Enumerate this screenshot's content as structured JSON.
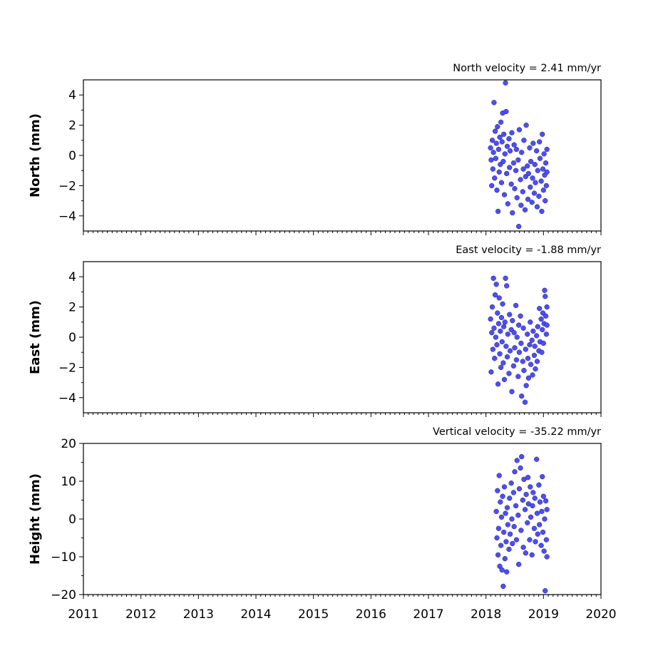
{
  "chart_data": [
    {
      "type": "scatter",
      "title": "North velocity = 2.41 mm/yr",
      "ylabel": "North (mm)",
      "xlim": [
        2011,
        2020
      ],
      "ylim": [
        -5,
        5
      ],
      "xticks": [
        2011,
        2012,
        2013,
        2014,
        2015,
        2016,
        2017,
        2018,
        2019,
        2020
      ],
      "yticks": [
        -4,
        -2,
        0,
        2,
        4
      ],
      "show_xtick_labels": false,
      "series": [
        {
          "marker_color": "#4d4dff",
          "points": [
            [
              2018.08,
              0.5
            ],
            [
              2018.09,
              -0.3
            ],
            [
              2018.1,
              -2.0
            ],
            [
              2018.11,
              1.0
            ],
            [
              2018.12,
              -0.9
            ],
            [
              2018.13,
              0.2
            ],
            [
              2018.14,
              3.5
            ],
            [
              2018.15,
              -1.5
            ],
            [
              2018.16,
              1.6
            ],
            [
              2018.17,
              -0.2
            ],
            [
              2018.18,
              0.8
            ],
            [
              2018.19,
              -2.3
            ],
            [
              2018.2,
              1.9
            ],
            [
              2018.21,
              -3.7
            ],
            [
              2018.22,
              0.4
            ],
            [
              2018.23,
              -1.1
            ],
            [
              2018.24,
              1.2
            ],
            [
              2018.25,
              -0.6
            ],
            [
              2018.26,
              2.2
            ],
            [
              2018.27,
              -1.8
            ],
            [
              2018.28,
              0.9
            ],
            [
              2018.29,
              2.8
            ],
            [
              2018.3,
              -0.4
            ],
            [
              2018.31,
              1.4
            ],
            [
              2018.32,
              -2.6
            ],
            [
              2018.33,
              0.1
            ],
            [
              2018.34,
              4.8
            ],
            [
              2018.35,
              2.9
            ],
            [
              2018.36,
              -1.2
            ],
            [
              2018.37,
              0.6
            ],
            [
              2018.38,
              -3.2
            ],
            [
              2018.4,
              1.1
            ],
            [
              2018.41,
              -0.8
            ],
            [
              2018.42,
              0.3
            ],
            [
              2018.44,
              -1.9
            ],
            [
              2018.45,
              1.5
            ],
            [
              2018.46,
              -3.8
            ],
            [
              2018.48,
              -0.5
            ],
            [
              2018.49,
              0.7
            ],
            [
              2018.5,
              -2.2
            ],
            [
              2018.52,
              -1.0
            ],
            [
              2018.53,
              0.4
            ],
            [
              2018.54,
              -2.8
            ],
            [
              2018.56,
              -0.3
            ],
            [
              2018.57,
              -4.7
            ],
            [
              2018.58,
              1.7
            ],
            [
              2018.6,
              -1.6
            ],
            [
              2018.61,
              -3.3
            ],
            [
              2018.62,
              0.2
            ],
            [
              2018.64,
              -2.4
            ],
            [
              2018.65,
              -0.9
            ],
            [
              2018.66,
              1.0
            ],
            [
              2018.68,
              -3.6
            ],
            [
              2018.69,
              -1.4
            ],
            [
              2018.7,
              2.0
            ],
            [
              2018.72,
              -0.7
            ],
            [
              2018.73,
              -2.9
            ],
            [
              2018.74,
              -1.2
            ],
            [
              2018.76,
              0.5
            ],
            [
              2018.77,
              -2.1
            ],
            [
              2018.78,
              -0.4
            ],
            [
              2018.8,
              -3.1
            ],
            [
              2018.81,
              -1.5
            ],
            [
              2018.82,
              0.8
            ],
            [
              2018.84,
              -2.5
            ],
            [
              2018.85,
              -0.6
            ],
            [
              2018.86,
              -1.8
            ],
            [
              2018.88,
              0.3
            ],
            [
              2018.89,
              -3.4
            ],
            [
              2018.9,
              -1.0
            ],
            [
              2018.92,
              -2.7
            ],
            [
              2018.93,
              0.9
            ],
            [
              2018.94,
              -0.2
            ],
            [
              2018.96,
              -1.7
            ],
            [
              2018.97,
              -3.7
            ],
            [
              2018.98,
              1.4
            ],
            [
              2018.99,
              -0.9
            ],
            [
              2019.0,
              -2.3
            ],
            [
              2019.01,
              0.1
            ],
            [
              2019.02,
              -1.3
            ],
            [
              2019.03,
              -3.0
            ],
            [
              2019.04,
              -0.5
            ],
            [
              2019.05,
              -2.0
            ],
            [
              2019.06,
              0.4
            ],
            [
              2019.06,
              -1.1
            ]
          ]
        }
      ]
    },
    {
      "type": "scatter",
      "title": "East velocity = -1.88 mm/yr",
      "ylabel": "East (mm)",
      "xlim": [
        2011,
        2020
      ],
      "ylim": [
        -5,
        5
      ],
      "xticks": [
        2011,
        2012,
        2013,
        2014,
        2015,
        2016,
        2017,
        2018,
        2019,
        2020
      ],
      "yticks": [
        -4,
        -2,
        0,
        2,
        4
      ],
      "show_xtick_labels": false,
      "series": [
        {
          "marker_color": "#4d4dff",
          "points": [
            [
              2018.08,
              1.2
            ],
            [
              2018.09,
              -2.3
            ],
            [
              2018.1,
              0.3
            ],
            [
              2018.11,
              2.0
            ],
            [
              2018.12,
              -0.8
            ],
            [
              2018.13,
              3.9
            ],
            [
              2018.14,
              0.6
            ],
            [
              2018.15,
              -1.4
            ],
            [
              2018.16,
              2.8
            ],
            [
              2018.17,
              0.0
            ],
            [
              2018.18,
              3.5
            ],
            [
              2018.19,
              -0.5
            ],
            [
              2018.2,
              1.6
            ],
            [
              2018.21,
              -3.1
            ],
            [
              2018.22,
              0.9
            ],
            [
              2018.23,
              2.6
            ],
            [
              2018.24,
              -1.1
            ],
            [
              2018.25,
              0.4
            ],
            [
              2018.26,
              -2.0
            ],
            [
              2018.27,
              1.3
            ],
            [
              2018.28,
              -0.3
            ],
            [
              2018.29,
              2.2
            ],
            [
              2018.3,
              -1.7
            ],
            [
              2018.31,
              0.7
            ],
            [
              2018.32,
              -2.8
            ],
            [
              2018.33,
              1.0
            ],
            [
              2018.34,
              3.9
            ],
            [
              2018.35,
              -0.6
            ],
            [
              2018.36,
              3.4
            ],
            [
              2018.37,
              -1.3
            ],
            [
              2018.38,
              0.2
            ],
            [
              2018.4,
              -2.4
            ],
            [
              2018.41,
              1.5
            ],
            [
              2018.42,
              -0.9
            ],
            [
              2018.44,
              0.5
            ],
            [
              2018.45,
              -3.6
            ],
            [
              2018.46,
              1.1
            ],
            [
              2018.48,
              -1.9
            ],
            [
              2018.49,
              0.3
            ],
            [
              2018.5,
              -0.7
            ],
            [
              2018.52,
              2.1
            ],
            [
              2018.53,
              -1.5
            ],
            [
              2018.54,
              0.0
            ],
            [
              2018.56,
              -2.6
            ],
            [
              2018.57,
              0.8
            ],
            [
              2018.58,
              -1.0
            ],
            [
              2018.6,
              1.4
            ],
            [
              2018.61,
              -0.4
            ],
            [
              2018.62,
              -3.9
            ],
            [
              2018.64,
              -1.6
            ],
            [
              2018.65,
              0.6
            ],
            [
              2018.66,
              -2.2
            ],
            [
              2018.68,
              -4.3
            ],
            [
              2018.69,
              -0.8
            ],
            [
              2018.7,
              -3.2
            ],
            [
              2018.72,
              0.2
            ],
            [
              2018.73,
              -1.4
            ],
            [
              2018.74,
              -2.7
            ],
            [
              2018.76,
              -0.5
            ],
            [
              2018.77,
              1.0
            ],
            [
              2018.78,
              -1.8
            ],
            [
              2018.8,
              -0.2
            ],
            [
              2018.81,
              -2.5
            ],
            [
              2018.82,
              0.4
            ],
            [
              2018.84,
              -1.2
            ],
            [
              2018.85,
              -0.6
            ],
            [
              2018.86,
              -2.1
            ],
            [
              2018.88,
              0.1
            ],
            [
              2018.89,
              -1.6
            ],
            [
              2018.9,
              0.7
            ],
            [
              2018.92,
              -0.9
            ],
            [
              2018.93,
              1.9
            ],
            [
              2018.94,
              -0.3
            ],
            [
              2018.96,
              1.2
            ],
            [
              2018.97,
              -1.0
            ],
            [
              2018.98,
              0.5
            ],
            [
              2018.99,
              1.6
            ],
            [
              2019.0,
              -0.4
            ],
            [
              2019.01,
              0.9
            ],
            [
              2019.02,
              3.1
            ],
            [
              2019.03,
              2.7
            ],
            [
              2019.04,
              1.4
            ],
            [
              2019.05,
              0.2
            ],
            [
              2019.06,
              2.0
            ],
            [
              2019.06,
              0.8
            ]
          ]
        }
      ]
    },
    {
      "type": "scatter",
      "title": "Vertical velocity = -35.22 mm/yr",
      "ylabel": "Height (mm)",
      "xlim": [
        2011,
        2020
      ],
      "ylim": [
        -20,
        20
      ],
      "xticks": [
        2011,
        2012,
        2013,
        2014,
        2015,
        2016,
        2017,
        2018,
        2019,
        2020
      ],
      "xtick_labels": [
        "2011",
        "2012",
        "2013",
        "2014",
        "2015",
        "2016",
        "2017",
        "2018",
        "2019",
        "2020"
      ],
      "yticks": [
        -20,
        -10,
        0,
        10,
        20
      ],
      "show_xtick_labels": true,
      "series": [
        {
          "marker_color": "#4d4dff",
          "points": [
            [
              2018.18,
              2.0
            ],
            [
              2018.19,
              -5.0
            ],
            [
              2018.2,
              7.5
            ],
            [
              2018.21,
              -9.5
            ],
            [
              2018.22,
              -2.5
            ],
            [
              2018.23,
              11.5
            ],
            [
              2018.24,
              -12.5
            ],
            [
              2018.25,
              4.5
            ],
            [
              2018.26,
              -7.0
            ],
            [
              2018.27,
              0.5
            ],
            [
              2018.28,
              -13.5
            ],
            [
              2018.29,
              6.0
            ],
            [
              2018.3,
              -17.8
            ],
            [
              2018.31,
              -3.5
            ],
            [
              2018.32,
              8.5
            ],
            [
              2018.33,
              -10.5
            ],
            [
              2018.34,
              1.5
            ],
            [
              2018.35,
              -6.0
            ],
            [
              2018.36,
              -14.0
            ],
            [
              2018.37,
              3.0
            ],
            [
              2018.38,
              -1.5
            ],
            [
              2018.4,
              -8.0
            ],
            [
              2018.41,
              5.5
            ],
            [
              2018.42,
              -4.0
            ],
            [
              2018.44,
              9.5
            ],
            [
              2018.45,
              0.0
            ],
            [
              2018.46,
              -6.5
            ],
            [
              2018.48,
              7.0
            ],
            [
              2018.49,
              -2.0
            ],
            [
              2018.5,
              12.5
            ],
            [
              2018.52,
              3.5
            ],
            [
              2018.53,
              -5.5
            ],
            [
              2018.54,
              15.5
            ],
            [
              2018.56,
              1.0
            ],
            [
              2018.57,
              -12.0
            ],
            [
              2018.58,
              8.0
            ],
            [
              2018.6,
              13.5
            ],
            [
              2018.61,
              -3.0
            ],
            [
              2018.62,
              16.5
            ],
            [
              2018.64,
              5.0
            ],
            [
              2018.65,
              -7.5
            ],
            [
              2018.66,
              10.5
            ],
            [
              2018.68,
              2.5
            ],
            [
              2018.69,
              -9.0
            ],
            [
              2018.7,
              6.5
            ],
            [
              2018.72,
              -1.0
            ],
            [
              2018.73,
              11.0
            ],
            [
              2018.74,
              4.0
            ],
            [
              2018.76,
              -5.5
            ],
            [
              2018.77,
              8.5
            ],
            [
              2018.78,
              0.5
            ],
            [
              2018.8,
              -9.5
            ],
            [
              2018.81,
              3.5
            ],
            [
              2018.82,
              7.0
            ],
            [
              2018.84,
              -2.5
            ],
            [
              2018.85,
              5.5
            ],
            [
              2018.86,
              -6.0
            ],
            [
              2018.88,
              15.8
            ],
            [
              2018.89,
              1.5
            ],
            [
              2018.9,
              -4.0
            ],
            [
              2018.92,
              9.0
            ],
            [
              2018.93,
              -1.5
            ],
            [
              2018.94,
              4.5
            ],
            [
              2018.96,
              -7.0
            ],
            [
              2018.97,
              2.0
            ],
            [
              2018.98,
              11.2
            ],
            [
              2018.99,
              -3.5
            ],
            [
              2019.0,
              6.0
            ],
            [
              2019.01,
              -8.5
            ],
            [
              2019.02,
              0.0
            ],
            [
              2019.03,
              -19.0
            ],
            [
              2019.04,
              4.8
            ],
            [
              2019.05,
              -5.5
            ],
            [
              2019.06,
              2.5
            ],
            [
              2019.06,
              -10.0
            ]
          ]
        }
      ]
    }
  ]
}
